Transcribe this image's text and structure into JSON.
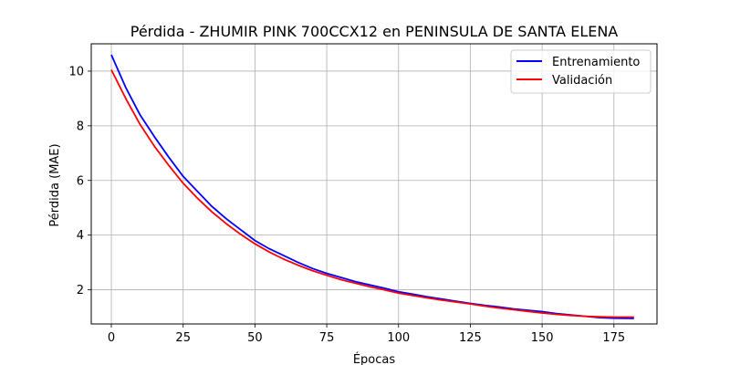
{
  "chart_data": {
    "type": "line",
    "title": "Pérdida - ZHUMIR PINK 700CCX12 en PENINSULA DE SANTA ELENA",
    "xlabel": "Épocas",
    "ylabel": "Pérdida (MAE)",
    "xlim": [
      -7,
      190
    ],
    "ylim": [
      0.75,
      11.0
    ],
    "xticks": [
      0,
      25,
      50,
      75,
      100,
      125,
      150,
      175
    ],
    "yticks": [
      2,
      4,
      6,
      8,
      10
    ],
    "grid": true,
    "legend": {
      "position": "top-right"
    },
    "series": [
      {
        "name": "Entrenamiento",
        "color": "#0000ff",
        "x": [
          0,
          5,
          10,
          15,
          20,
          25,
          30,
          35,
          40,
          45,
          50,
          55,
          60,
          65,
          70,
          75,
          80,
          85,
          90,
          95,
          100,
          105,
          110,
          115,
          120,
          125,
          130,
          135,
          140,
          145,
          150,
          155,
          160,
          165,
          170,
          175,
          182
        ],
        "y": [
          10.6,
          9.4,
          8.4,
          7.6,
          6.85,
          6.15,
          5.6,
          5.05,
          4.6,
          4.2,
          3.8,
          3.5,
          3.25,
          3.0,
          2.78,
          2.6,
          2.45,
          2.3,
          2.18,
          2.06,
          1.93,
          1.84,
          1.74,
          1.66,
          1.58,
          1.5,
          1.43,
          1.37,
          1.3,
          1.25,
          1.2,
          1.13,
          1.08,
          1.03,
          0.98,
          0.96,
          0.95
        ]
      },
      {
        "name": "Validación",
        "color": "#ff0000",
        "x": [
          0,
          5,
          10,
          15,
          20,
          25,
          30,
          35,
          40,
          45,
          50,
          55,
          60,
          65,
          70,
          75,
          80,
          85,
          90,
          95,
          100,
          105,
          110,
          115,
          120,
          125,
          130,
          135,
          140,
          145,
          150,
          155,
          160,
          165,
          170,
          175,
          182
        ],
        "y": [
          10.05,
          9.0,
          8.05,
          7.25,
          6.55,
          5.9,
          5.35,
          4.85,
          4.42,
          4.03,
          3.68,
          3.38,
          3.12,
          2.9,
          2.7,
          2.53,
          2.37,
          2.24,
          2.11,
          2.0,
          1.88,
          1.79,
          1.7,
          1.62,
          1.55,
          1.48,
          1.4,
          1.33,
          1.27,
          1.21,
          1.15,
          1.1,
          1.06,
          1.03,
          1.01,
          1.0,
          1.0
        ]
      }
    ]
  }
}
